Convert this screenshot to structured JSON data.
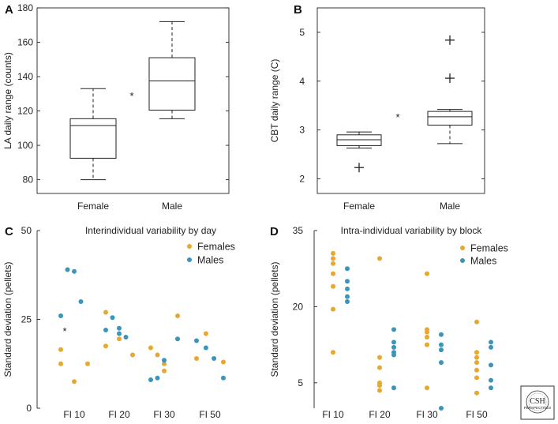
{
  "chart_data": [
    {
      "panel": "A",
      "type": "box",
      "ylabel": "LA daily range (counts)",
      "ylim": [
        72,
        180
      ],
      "yticks": [
        80,
        100,
        120,
        140,
        160,
        180
      ],
      "categories": [
        "Female",
        "Male"
      ],
      "boxes": [
        {
          "name": "Female",
          "whisker_low": 80,
          "q1": 92.5,
          "median": 111.5,
          "q3": 115.5,
          "whisker_high": 133,
          "outliers": []
        },
        {
          "name": "Male",
          "whisker_low": 115.5,
          "q1": 120.5,
          "median": 137.5,
          "q3": 151,
          "whisker_high": 172,
          "outliers": []
        }
      ],
      "annotation": "*"
    },
    {
      "panel": "B",
      "type": "box",
      "ylabel": "CBT daily range (C)",
      "ylim": [
        1.7,
        5.5
      ],
      "yticks": [
        2,
        3,
        4,
        5
      ],
      "categories": [
        "Female",
        "Male"
      ],
      "boxes": [
        {
          "name": "Female",
          "whisker_low": 2.63,
          "q1": 2.68,
          "median": 2.8,
          "q3": 2.9,
          "whisker_high": 2.96,
          "outliers": [
            2.23
          ]
        },
        {
          "name": "Male",
          "whisker_low": 2.72,
          "q1": 3.1,
          "median": 3.27,
          "q3": 3.38,
          "whisker_high": 3.42,
          "outliers": [
            4.06,
            4.84
          ]
        }
      ],
      "annotation": "*"
    },
    {
      "panel": "C",
      "type": "scatter",
      "title": "Interindividual variability by day",
      "ylabel": "Standard deviation (pellets)",
      "ylim": [
        0,
        50
      ],
      "yticks": [
        0,
        25,
        50
      ],
      "categories": [
        "FI 10",
        "FI 20",
        "FI 30",
        "FI 50"
      ],
      "legend_position": "top-right",
      "annotation": "*",
      "series": [
        {
          "name": "Females",
          "color": "#E8A72F",
          "points": [
            {
              "category": 0,
              "offset": -1,
              "values": [
                12.5,
                16.5
              ]
            },
            {
              "category": 0,
              "offset": 0,
              "values": [
                7.5
              ]
            },
            {
              "category": 0,
              "offset": 1,
              "values": [
                12.5
              ]
            },
            {
              "category": 1,
              "offset": -1,
              "values": [
                27,
                17.5
              ]
            },
            {
              "category": 1,
              "offset": 0,
              "values": [
                19.5
              ]
            },
            {
              "category": 1,
              "offset": 1,
              "values": [
                15
              ]
            },
            {
              "category": 2,
              "offset": -1,
              "values": [
                17
              ]
            },
            {
              "category": 2,
              "offset": -0.5,
              "values": [
                15
              ]
            },
            {
              "category": 2,
              "offset": 0,
              "values": [
                10.5,
                12.5
              ]
            },
            {
              "category": 2,
              "offset": 1,
              "values": [
                26
              ]
            },
            {
              "category": 3,
              "offset": -1,
              "values": [
                14
              ]
            },
            {
              "category": 3,
              "offset": -0.3,
              "values": [
                21
              ]
            },
            {
              "category": 3,
              "offset": 1,
              "values": [
                13
              ]
            }
          ]
        },
        {
          "name": "Males",
          "color": "#3A95BA",
          "points": [
            {
              "category": 0,
              "offset": -1,
              "values": [
                26
              ]
            },
            {
              "category": 0,
              "offset": -0.5,
              "values": [
                39
              ]
            },
            {
              "category": 0,
              "offset": 0,
              "values": [
                38.5
              ]
            },
            {
              "category": 0,
              "offset": 0.5,
              "values": [
                30
              ]
            },
            {
              "category": 1,
              "offset": -1,
              "values": [
                22
              ]
            },
            {
              "category": 1,
              "offset": -0.5,
              "values": [
                25.5
              ]
            },
            {
              "category": 1,
              "offset": 0,
              "values": [
                22.5,
                21
              ]
            },
            {
              "category": 1,
              "offset": 0.5,
              "values": [
                20
              ]
            },
            {
              "category": 2,
              "offset": -1,
              "values": [
                8
              ]
            },
            {
              "category": 2,
              "offset": -0.5,
              "values": [
                8.5
              ]
            },
            {
              "category": 2,
              "offset": 0,
              "values": [
                13.5
              ]
            },
            {
              "category": 2,
              "offset": 1,
              "values": [
                19.5
              ]
            },
            {
              "category": 3,
              "offset": -1,
              "values": [
                19
              ]
            },
            {
              "category": 3,
              "offset": -0.3,
              "values": [
                17
              ]
            },
            {
              "category": 3,
              "offset": 0.3,
              "values": [
                14
              ]
            },
            {
              "category": 3,
              "offset": 1,
              "values": [
                8.5
              ]
            }
          ]
        }
      ]
    },
    {
      "panel": "D",
      "type": "scatter",
      "title": "Intra-individual variability by block",
      "ylabel": "Standard deviation (pellets)",
      "ylim": [
        0,
        35
      ],
      "yticks": [
        5,
        20,
        35
      ],
      "categories": [
        "FI 10",
        "FI 20",
        "FI 30",
        "FI 50"
      ],
      "legend_position": "top-right",
      "series": [
        {
          "name": "Females",
          "color": "#E8A72F",
          "points": [
            {
              "category": 0,
              "offset": 0,
              "values": [
                30.5,
                29.5,
                28.5,
                26.5,
                24,
                19.5,
                11
              ]
            },
            {
              "category": 1,
              "offset": 0,
              "values": [
                29.5,
                10,
                8,
                5,
                4.5,
                3.5
              ]
            },
            {
              "category": 2,
              "offset": 0,
              "values": [
                26.5,
                15.5,
                15,
                14,
                12.5,
                4
              ]
            },
            {
              "category": 3,
              "offset": 0,
              "values": [
                17,
                11,
                10,
                9,
                7.5,
                6,
                3
              ]
            }
          ]
        },
        {
          "name": "Males",
          "color": "#3A95BA",
          "points": [
            {
              "category": 0,
              "offset": 1,
              "values": [
                27.5,
                25,
                23.5,
                22,
                21
              ]
            },
            {
              "category": 1,
              "offset": 1,
              "values": [
                15.5,
                13,
                12,
                11,
                10.5,
                4
              ]
            },
            {
              "category": 2,
              "offset": 1,
              "values": [
                14.5,
                12.5,
                11.5,
                9,
                0
              ]
            },
            {
              "category": 3,
              "offset": 1,
              "values": [
                13,
                12,
                8.5,
                5.5,
                4
              ]
            }
          ]
        }
      ]
    }
  ],
  "logo": {
    "text": "CSH",
    "subtext": "PERSPECTIVES"
  }
}
